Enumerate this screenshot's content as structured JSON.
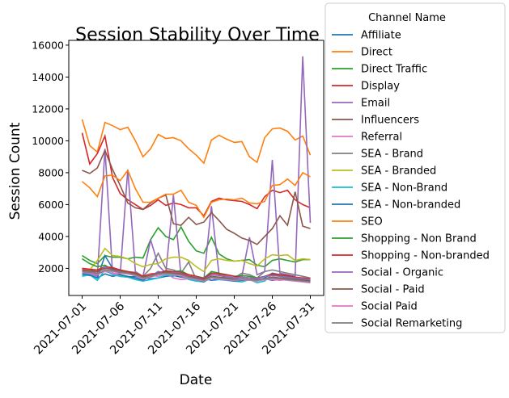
{
  "chart_data": {
    "type": "line",
    "title": "Session Stability Over Time",
    "xlabel": "Date",
    "ylabel": "Session Count",
    "x_start": "2021-07-01",
    "x_ticks": [
      "2021-07-01",
      "2021-07-06",
      "2021-07-11",
      "2021-07-16",
      "2021-07-21",
      "2021-07-26",
      "2021-07-31"
    ],
    "y_ticks": [
      2000,
      4000,
      6000,
      8000,
      10000,
      12000,
      14000,
      16000
    ],
    "y_tick_labels": [
      "2000",
      "4000",
      "6000",
      "8000",
      "10000",
      "12000",
      "14000",
      "16000"
    ],
    "xlim": [
      "2020-06-29",
      "2021-07-31"
    ],
    "ylim": [
      300,
      16300
    ],
    "legend": {
      "title": "Channel Name",
      "placement": "outside-right"
    },
    "grid": false,
    "series": [
      {
        "name": "Affiliate",
        "color": "#1f77b4",
        "values": [
          1600,
          1550,
          1400,
          1650,
          1500,
          1600,
          1450,
          1500,
          1400,
          1350,
          1400,
          1500,
          1550,
          1450,
          1400,
          1500,
          1350,
          1250,
          1300,
          1400,
          1350,
          1300,
          1250,
          1300,
          1350,
          1250,
          1300,
          1400,
          1350,
          1300,
          1250
        ]
      },
      {
        "name": "Direct",
        "color": "#ff7f0e",
        "values": [
          11350,
          9700,
          9300,
          11150,
          10950,
          10700,
          10850,
          10000,
          9000,
          9500,
          10400,
          10150,
          10200,
          10000,
          9500,
          9100,
          8600,
          10050,
          10350,
          10100,
          9900,
          9950,
          9000,
          8650,
          10200,
          10750,
          10800,
          10600,
          10050,
          10300,
          9100
        ]
      },
      {
        "name": "Direct Traffic",
        "color": "#2ca02c",
        "values": [
          2800,
          2500,
          2300,
          2800,
          2700,
          2700,
          2600,
          2700,
          2650,
          3800,
          4550,
          4000,
          3800,
          4600,
          3700,
          3100,
          2950,
          3950,
          2900,
          2600,
          2450,
          2500,
          2550,
          2200,
          2100,
          2500,
          2600,
          2500,
          2400,
          2550,
          2550
        ]
      },
      {
        "name": "Display",
        "color": "#d62728",
        "values": [
          10500,
          8550,
          9200,
          10300,
          7700,
          6700,
          6300,
          6000,
          5700,
          5950,
          6300,
          5950,
          6100,
          6000,
          5800,
          5800,
          5300,
          6200,
          6400,
          6300,
          6250,
          6200,
          6000,
          5750,
          6500,
          6900,
          6750,
          6900,
          6300,
          6000,
          5800
        ]
      },
      {
        "name": "Email",
        "color": "#9467bd",
        "values": [
          1800,
          1700,
          1500,
          9500,
          1700,
          1600,
          8200,
          1800,
          1500,
          3800,
          2200,
          1700,
          6600,
          1500,
          1400,
          1500,
          1300,
          5900,
          1600,
          1400,
          1300,
          1500,
          3950,
          1600,
          1800,
          8800,
          1700,
          1600,
          1500,
          15300,
          4850
        ]
      },
      {
        "name": "Influencers",
        "color": "#8c564b",
        "values": [
          8150,
          7950,
          8300,
          9400,
          8200,
          7200,
          6100,
          5800,
          5700,
          6100,
          6400,
          6600,
          4800,
          4700,
          5200,
          4750,
          4900,
          5500,
          5000,
          4450,
          4200,
          3900,
          3750,
          3500,
          4000,
          4500,
          5300,
          4700,
          6800,
          4650,
          4500
        ]
      },
      {
        "name": "Referral",
        "color": "#e377c2",
        "values": [
          1950,
          1850,
          1700,
          1800,
          1700,
          1500,
          1450,
          1400,
          1350,
          1550,
          1500,
          1700,
          1400,
          1300,
          1350,
          1200,
          1250,
          1400,
          1300,
          1250,
          1200,
          1250,
          1300,
          1300,
          1350,
          1300,
          1250,
          1300,
          1250,
          1200,
          1150
        ]
      },
      {
        "name": "SEA - Brand",
        "color": "#7f7f7f",
        "values": [
          2000,
          1900,
          1800,
          2100,
          2000,
          1900,
          1800,
          1750,
          1500,
          2000,
          2950,
          2000,
          1900,
          1700,
          2400,
          1300,
          1250,
          1800,
          1700,
          1500,
          1400,
          1700,
          1600,
          1400,
          1800,
          1900,
          1800,
          1700,
          1600,
          1500,
          1400
        ]
      },
      {
        "name": "SEA - Branded",
        "color": "#bcbd22",
        "values": [
          2000,
          1900,
          2500,
          3250,
          2800,
          2750,
          2600,
          2300,
          2100,
          2250,
          2300,
          2600,
          2700,
          2700,
          2500,
          2100,
          1800,
          2500,
          2600,
          2500,
          2450,
          2500,
          2300,
          2150,
          2600,
          2850,
          2800,
          2850,
          2500,
          2600,
          2550
        ]
      },
      {
        "name": "SEA - Non-Brand",
        "color": "#17becf",
        "values": [
          1500,
          1600,
          1250,
          1900,
          1600,
          1500,
          1450,
          1300,
          1200,
          1300,
          1400,
          1600,
          1500,
          1700,
          1300,
          1200,
          1150,
          1400,
          1300,
          1250,
          1200,
          1150,
          1300,
          1100,
          1200,
          1650,
          1500,
          1400,
          1300,
          1200,
          1150
        ]
      },
      {
        "name": "SEA - Non-branded",
        "color": "#1f77b4",
        "values": [
          1700,
          1600,
          1400,
          2800,
          2000,
          1600,
          1500,
          1400,
          1250,
          1500,
          1800,
          1700,
          1650,
          1600,
          1400,
          1300,
          1150,
          1500,
          1400,
          1300,
          1200,
          1250,
          1300,
          1200,
          1400,
          1700,
          1600,
          1500,
          1400,
          1400,
          1300
        ]
      },
      {
        "name": "SEO",
        "color": "#ff7f0e",
        "values": [
          7450,
          7050,
          6500,
          7800,
          7850,
          7500,
          8150,
          7000,
          6150,
          6150,
          6400,
          6650,
          6650,
          6900,
          6150,
          5950,
          5200,
          6150,
          6300,
          6350,
          6300,
          6400,
          6100,
          6050,
          6200,
          7200,
          7250,
          7600,
          7200,
          8000,
          7750
        ]
      },
      {
        "name": "Shopping - Non Brand",
        "color": "#2ca02c",
        "values": [
          2600,
          2300,
          2100,
          2200,
          1900,
          1800,
          1750,
          1700,
          1400,
          1500,
          1750,
          1800,
          1800,
          1850,
          1600,
          1500,
          1400,
          1800,
          1700,
          1600,
          1500,
          1550,
          1500,
          1400,
          1500,
          1600,
          1550,
          1500,
          1400,
          1350,
          1300
        ]
      },
      {
        "name": "Shopping - Non-branded",
        "color": "#d62728",
        "values": [
          2000,
          1950,
          1900,
          2100,
          2050,
          1900,
          1800,
          1700,
          1500,
          1650,
          1700,
          1850,
          1800,
          1750,
          1600,
          1500,
          1350,
          1700,
          1650,
          1600,
          1500,
          1450,
          1400,
          1350,
          1500,
          1650,
          1600,
          1550,
          1450,
          1400,
          1350
        ]
      },
      {
        "name": "Social - Organic",
        "color": "#9467bd",
        "values": [
          1850,
          1800,
          1700,
          2100,
          1900,
          1800,
          1700,
          1600,
          1400,
          1500,
          1800,
          1700,
          1750,
          1700,
          1500,
          1450,
          1300,
          1600,
          1550,
          1500,
          1400,
          1450,
          1400,
          1350,
          1500,
          1550,
          1500,
          1450,
          1400,
          1350,
          1300
        ]
      },
      {
        "name": "Social - Paid",
        "color": "#8c564b",
        "values": [
          1900,
          1850,
          1800,
          2000,
          1950,
          1850,
          1750,
          1650,
          1450,
          1550,
          1700,
          1750,
          1700,
          1650,
          1500,
          1400,
          1300,
          1500,
          1450,
          1400,
          1300,
          1350,
          1300,
          1250,
          1350,
          1450,
          1400,
          1350,
          1300,
          1250,
          1200
        ]
      },
      {
        "name": "Social Paid",
        "color": "#e377c2",
        "values": [
          1750,
          1700,
          1600,
          1850,
          1800,
          1700,
          1650,
          1550,
          1350,
          1450,
          1600,
          1650,
          1600,
          1550,
          1400,
          1300,
          1200,
          1400,
          1350,
          1300,
          1250,
          1300,
          1250,
          1200,
          1300,
          1350,
          1300,
          1250,
          1200,
          1150,
          1100
        ]
      },
      {
        "name": "Social Remarketing",
        "color": "#7f7f7f",
        "values": [
          1800,
          1750,
          1650,
          1900,
          1850,
          1750,
          1700,
          1600,
          1400,
          1500,
          1650,
          1700,
          1650,
          1600,
          1450,
          1350,
          1250,
          1450,
          1400,
          1350,
          1300,
          1350,
          1300,
          1250,
          1350,
          1400,
          1350,
          1300,
          1250,
          1200,
          1150
        ]
      }
    ]
  }
}
